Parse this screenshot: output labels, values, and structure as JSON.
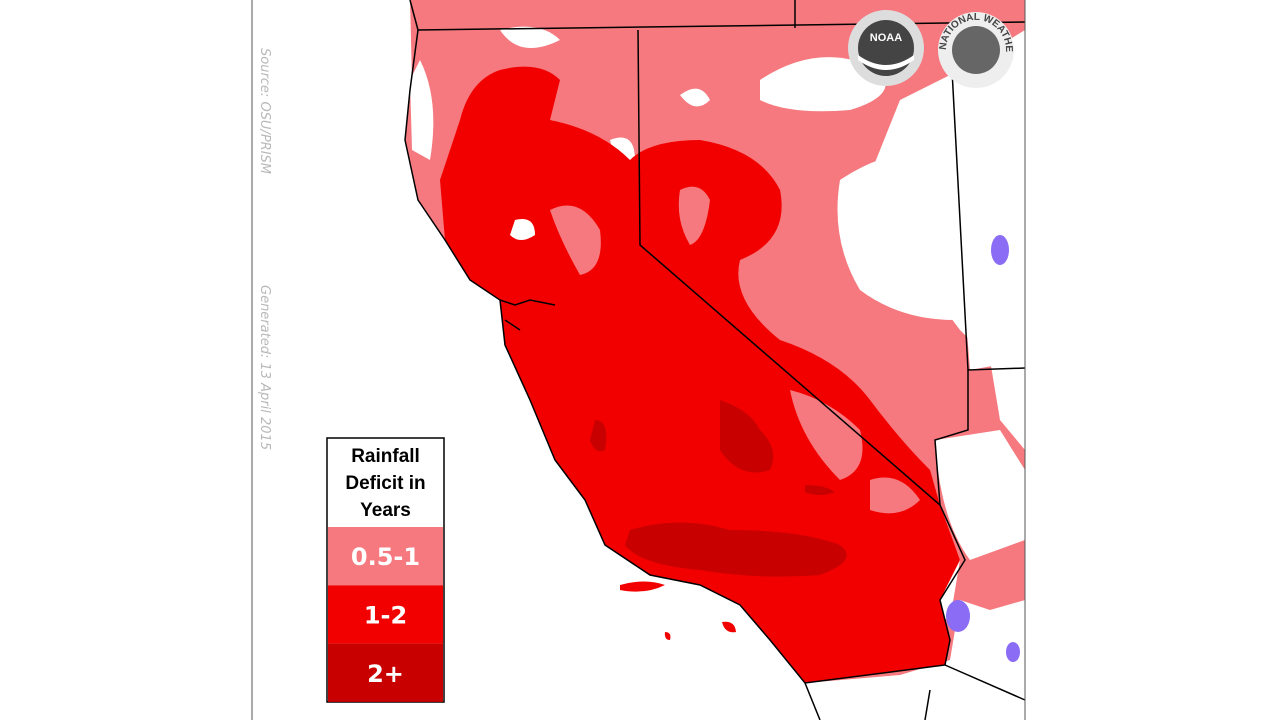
{
  "source": "Source: OSU/PRISM",
  "generated": "Generated: 13 April 2015",
  "legend": {
    "title": [
      "Rainfall",
      "Deficit in",
      "Years"
    ],
    "items": [
      {
        "label": "0.5-1",
        "color": "#f5797e"
      },
      {
        "label": "1-2",
        "color": "#f20000"
      },
      {
        "label": "2+",
        "color": "#c90000"
      }
    ]
  },
  "logos": {
    "noaa": "NOAA",
    "nws": "NATIONAL WEATHER SERVICE"
  }
}
